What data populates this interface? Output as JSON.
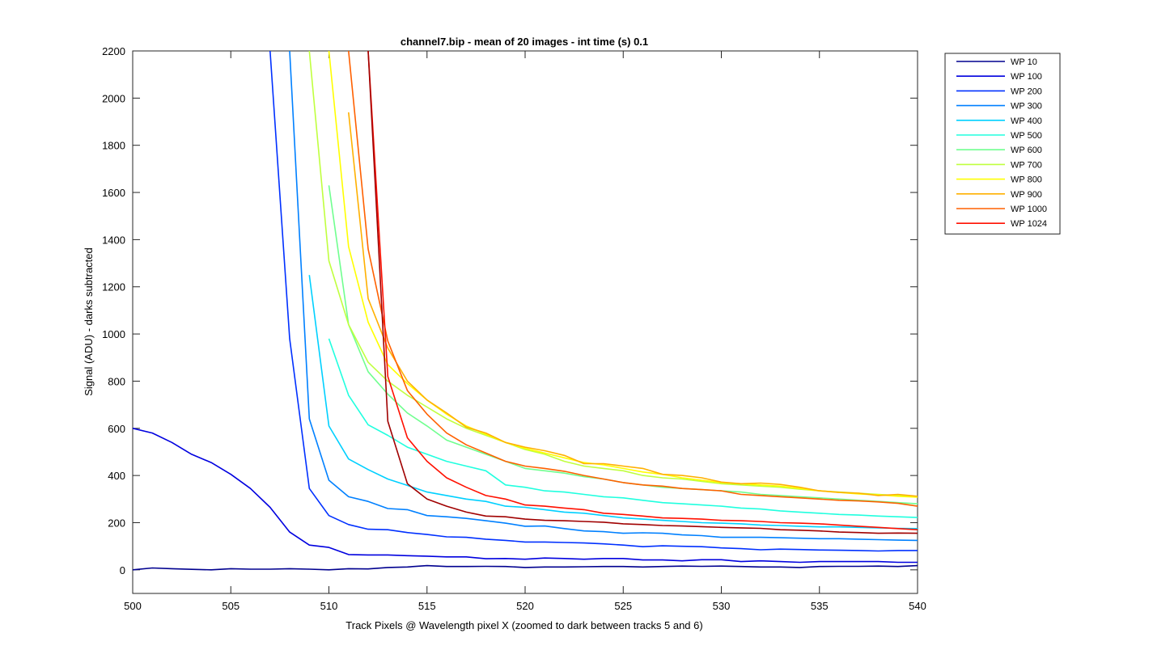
{
  "chart_data": {
    "type": "line",
    "title": "channel7.bip - mean of 20 images - int time (s) 0.1",
    "xlabel": "Track Pixels @ Wavelength pixel X  (zoomed to dark between tracks 5 and 6)",
    "ylabel": "Signal (ADU) - darks subtracted",
    "xlim": [
      500,
      540
    ],
    "ylim": [
      -100,
      2200
    ],
    "xticks": [
      500,
      505,
      510,
      515,
      520,
      525,
      530,
      535,
      540
    ],
    "yticks": [
      0,
      200,
      400,
      600,
      800,
      1000,
      1200,
      1400,
      1600,
      1800,
      2000,
      2200
    ],
    "grid": false,
    "legend_position": "outside-top-right",
    "x": [
      500,
      501,
      502,
      503,
      504,
      505,
      506,
      507,
      508,
      509,
      510,
      511,
      512,
      513,
      514,
      515,
      516,
      517,
      518,
      519,
      520,
      521,
      522,
      523,
      524,
      525,
      526,
      527,
      528,
      529,
      530,
      531,
      532,
      533,
      534,
      535,
      536,
      537,
      538,
      539,
      540
    ],
    "series": [
      {
        "name": "WP 10",
        "color": "#00008f",
        "values": [
          0,
          8,
          5,
          2,
          0,
          5,
          3,
          3,
          5,
          3,
          0,
          5,
          4,
          10,
          12,
          18,
          14,
          14,
          15,
          14,
          10,
          12,
          12,
          13,
          14,
          14,
          12,
          14,
          16,
          15,
          16,
          14,
          12,
          12,
          10,
          14,
          15,
          15,
          16,
          14,
          18
        ]
      },
      {
        "name": "WP 100",
        "color": "#0000df",
        "values": [
          600,
          580,
          540,
          490,
          455,
          405,
          345,
          265,
          160,
          105,
          95,
          65,
          63,
          63,
          60,
          58,
          55,
          55,
          47,
          48,
          45,
          50,
          48,
          45,
          48,
          48,
          42,
          42,
          38,
          43,
          43,
          35,
          38,
          35,
          32,
          35,
          35,
          35,
          35,
          32,
          32
        ]
      },
      {
        "name": "WP 200",
        "color": "#0030ff",
        "values": [
          null,
          null,
          null,
          null,
          null,
          null,
          null,
          2200,
          980,
          345,
          230,
          192,
          172,
          170,
          158,
          150,
          140,
          138,
          130,
          125,
          118,
          118,
          116,
          114,
          110,
          105,
          98,
          102,
          100,
          98,
          93,
          90,
          85,
          88,
          86,
          84,
          83,
          82,
          80,
          82,
          82
        ]
      },
      {
        "name": "WP 300",
        "color": "#0080ff",
        "values": [
          null,
          null,
          null,
          null,
          null,
          null,
          null,
          null,
          2200,
          640,
          380,
          310,
          290,
          260,
          255,
          230,
          225,
          218,
          208,
          198,
          185,
          186,
          175,
          165,
          162,
          155,
          157,
          155,
          148,
          145,
          138,
          138,
          138,
          136,
          134,
          132,
          132,
          130,
          128,
          126,
          125
        ]
      },
      {
        "name": "WP 400",
        "color": "#00d0ff",
        "values": [
          null,
          null,
          null,
          null,
          null,
          null,
          null,
          null,
          null,
          1250,
          610,
          470,
          425,
          385,
          358,
          330,
          315,
          300,
          290,
          270,
          265,
          255,
          245,
          240,
          230,
          220,
          215,
          210,
          205,
          200,
          198,
          195,
          190,
          188,
          185,
          182,
          182,
          180,
          178,
          176,
          175
        ]
      },
      {
        "name": "WP 500",
        "color": "#20ffdf",
        "values": [
          null,
          null,
          null,
          null,
          null,
          null,
          null,
          null,
          null,
          null,
          980,
          740,
          615,
          570,
          520,
          490,
          460,
          440,
          420,
          360,
          350,
          335,
          330,
          320,
          310,
          305,
          295,
          285,
          280,
          275,
          270,
          262,
          258,
          250,
          245,
          240,
          235,
          232,
          228,
          225,
          222
        ]
      },
      {
        "name": "WP 600",
        "color": "#70ff8f",
        "values": [
          null,
          null,
          null,
          null,
          null,
          null,
          null,
          null,
          null,
          null,
          1630,
          1040,
          840,
          745,
          665,
          610,
          550,
          520,
          490,
          460,
          430,
          420,
          410,
          395,
          385,
          370,
          360,
          350,
          345,
          340,
          335,
          330,
          320,
          315,
          310,
          305,
          300,
          295,
          290,
          285,
          280
        ]
      },
      {
        "name": "WP 700",
        "color": "#c0ff3f",
        "values": [
          null,
          null,
          null,
          null,
          null,
          null,
          null,
          null,
          null,
          2200,
          1310,
          1040,
          880,
          800,
          740,
          690,
          640,
          600,
          570,
          540,
          510,
          490,
          460,
          440,
          430,
          420,
          400,
          390,
          385,
          375,
          365,
          360,
          355,
          350,
          342,
          335,
          330,
          325,
          320,
          315,
          310
        ]
      },
      {
        "name": "WP 800",
        "color": "#ffff00",
        "values": [
          null,
          null,
          null,
          null,
          null,
          null,
          null,
          null,
          null,
          null,
          2200,
          1370,
          1050,
          870,
          790,
          720,
          660,
          610,
          575,
          540,
          515,
          495,
          475,
          455,
          445,
          430,
          415,
          405,
          390,
          380,
          370,
          365,
          360,
          355,
          345,
          335,
          328,
          322,
          318,
          312,
          308
        ]
      },
      {
        "name": "WP 900",
        "color": "#ffb000",
        "values": [
          null,
          null,
          null,
          null,
          null,
          null,
          null,
          null,
          null,
          null,
          null,
          1940,
          1150,
          940,
          800,
          720,
          665,
          605,
          580,
          540,
          520,
          505,
          485,
          450,
          450,
          440,
          430,
          405,
          400,
          390,
          372,
          365,
          368,
          362,
          350,
          335,
          328,
          325,
          315,
          320,
          312
        ]
      },
      {
        "name": "WP 1000",
        "color": "#ff6000",
        "values": [
          null,
          null,
          null,
          null,
          null,
          null,
          null,
          null,
          null,
          null,
          null,
          2200,
          1360,
          970,
          760,
          660,
          580,
          530,
          495,
          460,
          440,
          430,
          418,
          400,
          385,
          370,
          360,
          355,
          345,
          340,
          335,
          320,
          315,
          310,
          305,
          300,
          295,
          292,
          288,
          282,
          270
        ]
      },
      {
        "name": "WP 1024",
        "color": "#ff1000",
        "values": [
          null,
          null,
          null,
          null,
          null,
          null,
          null,
          null,
          null,
          null,
          null,
          null,
          2200,
          820,
          560,
          460,
          390,
          350,
          315,
          300,
          275,
          270,
          262,
          255,
          240,
          235,
          228,
          220,
          218,
          215,
          210,
          208,
          205,
          200,
          198,
          195,
          190,
          185,
          180,
          175,
          170
        ]
      },
      {
        "name": "",
        "color": "#a00000",
        "values": [
          null,
          null,
          null,
          null,
          null,
          null,
          null,
          null,
          null,
          null,
          null,
          null,
          2200,
          630,
          365,
          300,
          270,
          245,
          228,
          225,
          215,
          210,
          208,
          205,
          202,
          195,
          192,
          188,
          186,
          183,
          180,
          178,
          176,
          170,
          168,
          165,
          160,
          158,
          155,
          156,
          155
        ]
      }
    ]
  }
}
